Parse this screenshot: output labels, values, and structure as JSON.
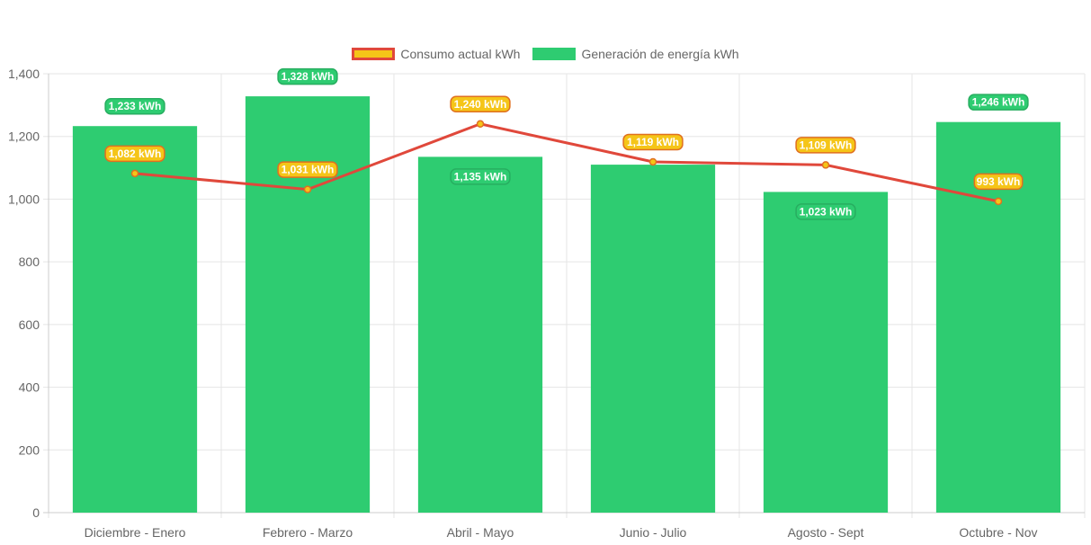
{
  "legend": {
    "consumption_label": "Consumo actual kWh",
    "generation_label": "Generación de energía kWh"
  },
  "chart_data": {
    "type": "bar",
    "categories": [
      "Diciembre - Enero",
      "Febrero - Marzo",
      "Abril - Mayo",
      "Junio - Julio",
      "Agosto - Sept",
      "Octubre - Nov"
    ],
    "series": [
      {
        "name": "Generación de energía kWh",
        "type": "bar",
        "values": [
          1233,
          1328,
          1135,
          1110,
          1023,
          1246
        ],
        "data_labels": [
          "1,233 kWh",
          "1,328 kWh",
          "1,135 kWh",
          "",
          "1,023 kWh",
          "1,246 kWh"
        ],
        "color": "#2ecc71"
      },
      {
        "name": "Consumo actual kWh",
        "type": "line",
        "values": [
          1082,
          1031,
          1240,
          1119,
          1109,
          993
        ],
        "data_labels": [
          "1,082 kWh",
          "1,031 kWh",
          "1,240 kWh",
          "1,119 kWh",
          "1,109 kWh",
          "993 kWh"
        ],
        "color": "#e0483b",
        "label_fill": "#f5c518",
        "label_border": "#e07020"
      }
    ],
    "ylim": [
      0,
      1400
    ],
    "y_ticks": [
      0,
      200,
      400,
      600,
      800,
      1000,
      1200,
      1400
    ],
    "y_tick_labels": [
      "0",
      "200",
      "400",
      "600",
      "800",
      "1,000",
      "1,200",
      "1,400"
    ],
    "grid": true,
    "legend_position": "top-center",
    "grid_color": "#e5e5e5",
    "tick_color": "#666666"
  }
}
